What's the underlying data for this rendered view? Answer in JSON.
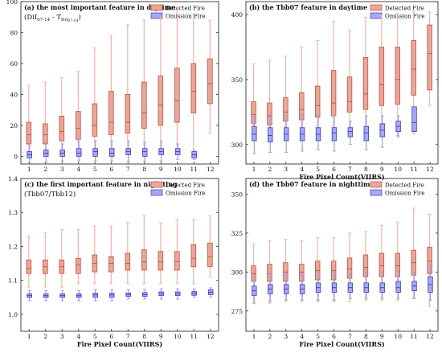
{
  "figure": {
    "legend_detected": "Detected Fire",
    "legend_omission": "Omission Fire",
    "colors": {
      "detected_fill": "#e8a79a",
      "detected_stroke": "#c0503b",
      "detected_whisker": "#f2b3aa",
      "omission_fill": "#a8a8f2",
      "omission_stroke": "#3a3ac0",
      "omission_whisker": "#9aa0e6",
      "frame": "#333333",
      "text": "#111111"
    }
  },
  "chart_data": [
    {
      "type": "box",
      "panel": "a",
      "title": "(a) the most important feature in daytime",
      "subtitle": "(DiI",
      "subtitle_sub1": "07-14",
      "subtitle_mid": " - T",
      "subtitle_sub2": "DiI",
      "subtitle_sub3": "07-14",
      "subtitle_end": ")",
      "xlabel": "",
      "ylabel": "",
      "categories": [
        "1",
        "2",
        "3",
        "4",
        "5",
        "6",
        "7",
        "8",
        "9",
        "10",
        "11",
        "12"
      ],
      "ylim": [
        -5,
        100
      ],
      "yticks": [
        0,
        20,
        40,
        60,
        80,
        100
      ],
      "legend": "top-right",
      "series": [
        {
          "name": "Detected Fire",
          "box": [
            {
              "whislo": 0,
              "q1": 8,
              "med": 14,
              "q3": 22,
              "whishi": 46
            },
            {
              "whislo": 0,
              "q1": 8,
              "med": 14,
              "q3": 21,
              "whishi": 48
            },
            {
              "whislo": 0,
              "q1": 10,
              "med": 16,
              "q3": 26,
              "whishi": 51
            },
            {
              "whislo": 1,
              "q1": 11,
              "med": 18,
              "q3": 29,
              "whishi": 55
            },
            {
              "whislo": 1,
              "q1": 13,
              "med": 20,
              "q3": 34,
              "whishi": 70
            },
            {
              "whislo": 1,
              "q1": 14,
              "med": 22,
              "q3": 42,
              "whishi": 78
            },
            {
              "whislo": 1,
              "q1": 15,
              "med": 22,
              "q3": 40,
              "whishi": 85
            },
            {
              "whislo": 2,
              "q1": 18,
              "med": 28,
              "q3": 48,
              "whishi": 88
            },
            {
              "whislo": 2,
              "q1": 20,
              "med": 33,
              "q3": 52,
              "whishi": 90
            },
            {
              "whislo": 2,
              "q1": 22,
              "med": 36,
              "q3": 57,
              "whishi": 96
            },
            {
              "whislo": 3,
              "q1": 28,
              "med": 42,
              "q3": 60,
              "whishi": 92
            },
            {
              "whislo": 15,
              "q1": 34,
              "med": 47,
              "q3": 63,
              "whishi": 88
            }
          ]
        },
        {
          "name": "Omission Fire",
          "box": [
            {
              "whislo": -4,
              "q1": -1,
              "med": 1,
              "q3": 3,
              "whishi": 7
            },
            {
              "whislo": -4,
              "q1": 0,
              "med": 2,
              "q3": 4,
              "whishi": 9
            },
            {
              "whislo": -3,
              "q1": 0,
              "med": 2,
              "q3": 4,
              "whishi": 8
            },
            {
              "whislo": -3,
              "q1": 0,
              "med": 2,
              "q3": 5,
              "whishi": 10
            },
            {
              "whislo": -3,
              "q1": 0,
              "med": 3,
              "q3": 5,
              "whishi": 10
            },
            {
              "whislo": -3,
              "q1": 0,
              "med": 2,
              "q3": 5,
              "whishi": 10
            },
            {
              "whislo": -3,
              "q1": 1,
              "med": 3,
              "q3": 5,
              "whishi": 10
            },
            {
              "whislo": -3,
              "q1": 0,
              "med": 3,
              "q3": 5,
              "whishi": 9
            },
            {
              "whislo": -3,
              "q1": 1,
              "med": 3,
              "q3": 5,
              "whishi": 10
            },
            {
              "whislo": -2,
              "q1": 1,
              "med": 3,
              "q3": 5,
              "whishi": 8
            },
            {
              "whislo": -2,
              "q1": -1,
              "med": 1,
              "q3": 3,
              "whishi": 4
            }
          ]
        }
      ]
    },
    {
      "type": "box",
      "panel": "b",
      "title": "(b) the Tbb07 feature in daytime",
      "xlabel": "Fire Pixel Count(VIIRS)",
      "ylabel": "",
      "categories": [
        "1",
        "2",
        "3",
        "4",
        "5",
        "6",
        "7",
        "8",
        "9",
        "10",
        "11",
        "12"
      ],
      "ylim": [
        285,
        410
      ],
      "yticks": [
        300,
        350,
        400
      ],
      "legend": "top-right",
      "series": [
        {
          "name": "Detected Fire",
          "box": [
            {
              "whislo": 303,
              "q1": 316,
              "med": 323,
              "q3": 333,
              "whishi": 362
            },
            {
              "whislo": 304,
              "q1": 315,
              "med": 322,
              "q3": 332,
              "whishi": 365
            },
            {
              "whislo": 304,
              "q1": 318,
              "med": 325,
              "q3": 336,
              "whishi": 368
            },
            {
              "whislo": 305,
              "q1": 319,
              "med": 327,
              "q3": 340,
              "whishi": 375
            },
            {
              "whislo": 305,
              "q1": 321,
              "med": 330,
              "q3": 345,
              "whishi": 380
            },
            {
              "whislo": 305,
              "q1": 322,
              "med": 332,
              "q3": 357,
              "whishi": 395
            },
            {
              "whislo": 306,
              "q1": 325,
              "med": 333,
              "q3": 352,
              "whishi": 388
            },
            {
              "whislo": 306,
              "q1": 327,
              "med": 339,
              "q3": 367,
              "whishi": 398
            },
            {
              "whislo": 307,
              "q1": 330,
              "med": 346,
              "q3": 375,
              "whishi": 400
            },
            {
              "whislo": 307,
              "q1": 331,
              "med": 350,
              "q3": 375,
              "whishi": 401
            },
            {
              "whislo": 308,
              "q1": 338,
              "med": 358,
              "q3": 380,
              "whishi": 402
            },
            {
              "whislo": 330,
              "q1": 342,
              "med": 370,
              "q3": 392,
              "whishi": 402
            }
          ]
        },
        {
          "name": "Omission Fire",
          "box": [
            {
              "whislo": 293,
              "q1": 303,
              "med": 308,
              "q3": 314,
              "whishi": 322
            },
            {
              "whislo": 294,
              "q1": 302,
              "med": 307,
              "q3": 313,
              "whishi": 323
            },
            {
              "whislo": 294,
              "q1": 303,
              "med": 308,
              "q3": 313,
              "whishi": 322
            },
            {
              "whislo": 295,
              "q1": 303,
              "med": 308,
              "q3": 313,
              "whishi": 323
            },
            {
              "whislo": 296,
              "q1": 303,
              "med": 308,
              "q3": 313,
              "whishi": 323
            },
            {
              "whislo": 295,
              "q1": 303,
              "med": 309,
              "q3": 313,
              "whishi": 322
            },
            {
              "whislo": 300,
              "q1": 306,
              "med": 310,
              "q3": 313,
              "whishi": 318
            },
            {
              "whislo": 296,
              "q1": 303,
              "med": 309,
              "q3": 314,
              "whishi": 322
            },
            {
              "whislo": 298,
              "q1": 306,
              "med": 311,
              "q3": 316,
              "whishi": 322
            },
            {
              "whislo": 306,
              "q1": 310,
              "med": 314,
              "q3": 318,
              "whishi": 322
            },
            {
              "whislo": 310,
              "q1": 310,
              "med": 317,
              "q3": 329,
              "whishi": 329
            }
          ]
        }
      ]
    },
    {
      "type": "box",
      "panel": "c",
      "title": "(c) the first important feature in nightting",
      "subtitle": "(Tbb07/Tbb12)",
      "xlabel": "Fire Pixel Count(VIIRS)",
      "ylabel": "",
      "categories": [
        "1",
        "2",
        "3",
        "4",
        "5",
        "6",
        "7",
        "8",
        "9",
        "10",
        "11",
        "12"
      ],
      "ylim": [
        0.95,
        1.4
      ],
      "yticks": [
        1.0,
        1.1,
        1.2,
        1.3,
        1.4
      ],
      "yticklabels": [
        "1.0",
        "1.1",
        "1.2",
        "1.3",
        "1.4"
      ],
      "legend": "top-right",
      "series": [
        {
          "name": "Detected Fire",
          "box": [
            {
              "whislo": 1.08,
              "q1": 1.12,
              "med": 1.135,
              "q3": 1.16,
              "whishi": 1.23
            },
            {
              "whislo": 1.08,
              "q1": 1.12,
              "med": 1.14,
              "q3": 1.16,
              "whishi": 1.24
            },
            {
              "whislo": 1.08,
              "q1": 1.12,
              "med": 1.14,
              "q3": 1.16,
              "whishi": 1.25
            },
            {
              "whislo": 1.09,
              "q1": 1.12,
              "med": 1.145,
              "q3": 1.165,
              "whishi": 1.25
            },
            {
              "whislo": 1.09,
              "q1": 1.125,
              "med": 1.15,
              "q3": 1.175,
              "whishi": 1.26
            },
            {
              "whislo": 1.09,
              "q1": 1.125,
              "med": 1.15,
              "q3": 1.17,
              "whishi": 1.26
            },
            {
              "whislo": 1.09,
              "q1": 1.13,
              "med": 1.15,
              "q3": 1.18,
              "whishi": 1.27
            },
            {
              "whislo": 1.09,
              "q1": 1.13,
              "med": 1.155,
              "q3": 1.19,
              "whishi": 1.29
            },
            {
              "whislo": 1.09,
              "q1": 1.13,
              "med": 1.155,
              "q3": 1.185,
              "whishi": 1.27
            },
            {
              "whislo": 1.09,
              "q1": 1.13,
              "med": 1.155,
              "q3": 1.185,
              "whishi": 1.28
            },
            {
              "whislo": 1.09,
              "q1": 1.14,
              "med": 1.165,
              "q3": 1.205,
              "whishi": 1.28
            },
            {
              "whislo": 1.11,
              "q1": 1.14,
              "med": 1.17,
              "q3": 1.21,
              "whishi": 1.29
            }
          ]
        },
        {
          "name": "Omission Fire",
          "box": [
            {
              "whislo": 1.04,
              "q1": 1.05,
              "med": 1.055,
              "q3": 1.06,
              "whishi": 1.07
            },
            {
              "whislo": 1.04,
              "q1": 1.05,
              "med": 1.055,
              "q3": 1.06,
              "whishi": 1.07
            },
            {
              "whislo": 1.04,
              "q1": 1.05,
              "med": 1.055,
              "q3": 1.06,
              "whishi": 1.07
            },
            {
              "whislo": 1.04,
              "q1": 1.05,
              "med": 1.055,
              "q3": 1.06,
              "whishi": 1.07
            },
            {
              "whislo": 1.04,
              "q1": 1.05,
              "med": 1.057,
              "q3": 1.062,
              "whishi": 1.072
            },
            {
              "whislo": 1.04,
              "q1": 1.05,
              "med": 1.057,
              "q3": 1.062,
              "whishi": 1.072
            },
            {
              "whislo": 1.045,
              "q1": 1.053,
              "med": 1.058,
              "q3": 1.063,
              "whishi": 1.072
            },
            {
              "whislo": 1.045,
              "q1": 1.053,
              "med": 1.058,
              "q3": 1.064,
              "whishi": 1.073
            },
            {
              "whislo": 1.045,
              "q1": 1.055,
              "med": 1.06,
              "q3": 1.066,
              "whishi": 1.075
            },
            {
              "whislo": 1.045,
              "q1": 1.055,
              "med": 1.06,
              "q3": 1.066,
              "whishi": 1.075
            },
            {
              "whislo": 1.05,
              "q1": 1.056,
              "med": 1.062,
              "q3": 1.067,
              "whishi": 1.075
            },
            {
              "whislo": 1.05,
              "q1": 1.058,
              "med": 1.065,
              "q3": 1.072,
              "whishi": 1.078
            }
          ]
        }
      ]
    },
    {
      "type": "box",
      "panel": "d",
      "title": "(d) the Tbb07 feature in nighttime",
      "xlabel": "Fire Pixel Count(VIIRS)",
      "ylabel": "",
      "categories": [
        "1",
        "2",
        "3",
        "4",
        "5",
        "6",
        "7",
        "8",
        "9",
        "10",
        "11",
        "12"
      ],
      "ylim": [
        262,
        360
      ],
      "yticks": [
        275,
        300,
        325,
        350
      ],
      "legend": "top-right",
      "series": [
        {
          "name": "Detected Fire",
          "box": [
            {
              "whislo": 280,
              "q1": 294,
              "med": 299,
              "q3": 304,
              "whishi": 318
            },
            {
              "whislo": 280,
              "q1": 294,
              "med": 299,
              "q3": 305,
              "whishi": 320
            },
            {
              "whislo": 281,
              "q1": 294,
              "med": 300,
              "q3": 306,
              "whishi": 321
            },
            {
              "whislo": 281,
              "q1": 294,
              "med": 300,
              "q3": 305,
              "whishi": 320
            },
            {
              "whislo": 281,
              "q1": 295,
              "med": 301,
              "q3": 307,
              "whishi": 322
            },
            {
              "whislo": 281,
              "q1": 295,
              "med": 301,
              "q3": 307,
              "whishi": 322
            },
            {
              "whislo": 281,
              "q1": 296,
              "med": 302,
              "q3": 309,
              "whishi": 325
            },
            {
              "whislo": 282,
              "q1": 297,
              "med": 303,
              "q3": 311,
              "whishi": 326
            },
            {
              "whislo": 282,
              "q1": 297,
              "med": 304,
              "q3": 312,
              "whishi": 330
            },
            {
              "whislo": 282,
              "q1": 297,
              "med": 304,
              "q3": 312,
              "whishi": 332
            },
            {
              "whislo": 283,
              "q1": 298,
              "med": 306,
              "q3": 314,
              "whishi": 341
            },
            {
              "whislo": 278,
              "q1": 299,
              "med": 307,
              "q3": 316,
              "whishi": 337
            }
          ]
        },
        {
          "name": "Omission Fire",
          "box": [
            {
              "whislo": 280,
              "q1": 285,
              "med": 288,
              "q3": 291,
              "whishi": 298
            },
            {
              "whislo": 281,
              "q1": 286,
              "med": 289,
              "q3": 292,
              "whishi": 299
            },
            {
              "whislo": 282,
              "q1": 286,
              "med": 289,
              "q3": 292,
              "whishi": 299
            },
            {
              "whislo": 282,
              "q1": 286,
              "med": 289,
              "q3": 292,
              "whishi": 299
            },
            {
              "whislo": 282,
              "q1": 287,
              "med": 290,
              "q3": 293,
              "whishi": 300
            },
            {
              "whislo": 282,
              "q1": 287,
              "med": 290,
              "q3": 293,
              "whishi": 300
            },
            {
              "whislo": 283,
              "q1": 287,
              "med": 290,
              "q3": 293,
              "whishi": 299
            },
            {
              "whislo": 283,
              "q1": 287,
              "med": 290,
              "q3": 293,
              "whishi": 300
            },
            {
              "whislo": 283,
              "q1": 287,
              "med": 290,
              "q3": 293,
              "whishi": 300
            },
            {
              "whislo": 283,
              "q1": 287,
              "med": 290,
              "q3": 294,
              "whishi": 301
            },
            {
              "whislo": 283,
              "q1": 288,
              "med": 291,
              "q3": 294,
              "whishi": 300
            },
            {
              "whislo": 282,
              "q1": 287,
              "med": 292,
              "q3": 297,
              "whishi": 305
            }
          ]
        }
      ]
    }
  ]
}
